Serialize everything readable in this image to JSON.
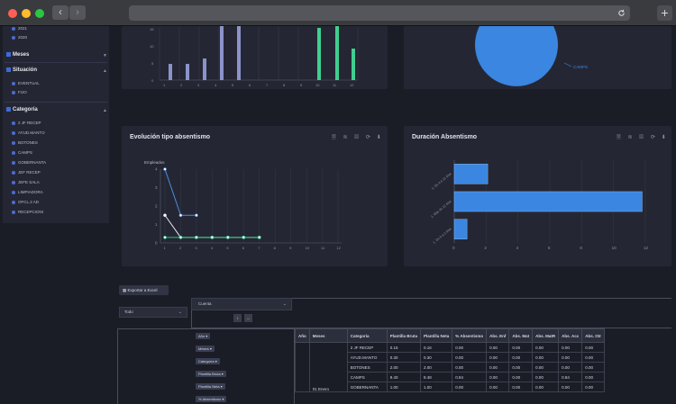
{
  "window": {
    "traffic_lights": [
      "#fe5f57",
      "#febc2e",
      "#28c840"
    ],
    "back_icon": "‹",
    "forward_icon": "›",
    "new_tab_icon": "+"
  },
  "sidebar": {
    "year_items": [
      "2021",
      "2020"
    ],
    "sections": [
      {
        "title": "Meses",
        "arrow": "▼"
      },
      {
        "title": "Situación",
        "arrow": "▲",
        "items": [
          "EVENTUAL",
          "FIJO"
        ]
      },
      {
        "title": "Categoría",
        "arrow": "▲",
        "items": [
          "2 JF RECEP",
          "AYUD.MANTO",
          "BOTONES",
          "CAMPS",
          "GOBERNANTA",
          "JEF RECEP",
          "JEFE SALA",
          "LIMPIADORA",
          "OFCL.2 AD",
          "RECEPCIONI"
        ]
      }
    ]
  },
  "top_left_chart": {
    "type": "bar",
    "y_ticks": [
      "0",
      "5",
      "10",
      "15"
    ],
    "x_ticks": [
      "1",
      "2",
      "3",
      "4",
      "5",
      "6",
      "7",
      "8",
      "9",
      "10",
      "11",
      "12"
    ]
  },
  "top_right_chart": {
    "type": "pie",
    "label": "CAMPS"
  },
  "evolucion": {
    "title": "Evolución tipo absentismo",
    "legend": "Empleados",
    "tools": "🗎 ≋ ▥ ⟳ ⬇",
    "chart_data": {
      "type": "line",
      "x": [
        1,
        2,
        3,
        4,
        5,
        6,
        7,
        8,
        9,
        10,
        11,
        12
      ],
      "ylim": [
        0,
        4
      ],
      "y_ticks": [
        "0",
        "1",
        "2",
        "3",
        "4"
      ],
      "series": [
        {
          "color": "#4d8de0",
          "points": [
            [
              1,
              4
            ],
            [
              2,
              1.5
            ],
            [
              3,
              1.5
            ]
          ]
        },
        {
          "color": "#e8e8f0",
          "points": [
            [
              1,
              1.5
            ],
            [
              2,
              0.3
            ],
            [
              3,
              0.3
            ],
            [
              4,
              0.3
            ],
            [
              5,
              0.3
            ],
            [
              6,
              0.3
            ],
            [
              7,
              0.3
            ]
          ]
        },
        {
          "color": "#2fbf8a",
          "points": [
            [
              1,
              0.3
            ],
            [
              2,
              0.3
            ],
            [
              3,
              0.3
            ],
            [
              4,
              0.3
            ],
            [
              5,
              0.3
            ],
            [
              6,
              0.3
            ],
            [
              7,
              0.3
            ]
          ]
        }
      ]
    }
  },
  "duracion": {
    "title": "Duración Absentismo",
    "tools": "🗎 ≋ ▥ ⟳ ⬇",
    "chart_data": {
      "type": "bar",
      "orientation": "horizontal",
      "categories": [
        "3. De 4 a 12 días",
        "2. Más de 12 días",
        "1. De 0 a 3 días"
      ],
      "values": [
        2.1,
        11.8,
        0.8
      ],
      "xlim": [
        0,
        12
      ],
      "x_ticks": [
        "0",
        "2",
        "4",
        "6",
        "8",
        "10",
        "12"
      ],
      "color": "#3a86e0"
    }
  },
  "toolbar": {
    "export_label": "Exportar a Excel",
    "export_icon": "▦",
    "filter_value": "Todo",
    "aggregator_value": "Cuenta",
    "sort_label": "↕",
    "order_label": "↔"
  },
  "pivot": {
    "fields": [
      "Año",
      "Meses",
      "Categoría",
      "Plantilla Bruta",
      "Plantilla Neta",
      "% Absentismo"
    ],
    "headers": [
      "Año",
      "Meses",
      "Categoría",
      "Plantilla Bruta",
      "Plantilla Neta",
      "% Absentismo",
      "Abs. Enf",
      "Abs. Mat",
      "Abs. MatR",
      "Abs. Acc",
      "Abs. Otr"
    ],
    "month_label": "01 Enero",
    "rows": [
      [
        "2 JF RECEP",
        "0.16",
        "0.16",
        "0.00",
        "0.00",
        "0.00",
        "0.00",
        "0.00",
        "0.00"
      ],
      [
        "AYUD.MANTO",
        "0.30",
        "0.30",
        "0.00",
        "0.00",
        "0.00",
        "0.00",
        "0.00",
        "0.00"
      ],
      [
        "BOTONES",
        "2.00",
        "2.00",
        "0.00",
        "0.00",
        "0.00",
        "0.00",
        "0.00",
        "0.00"
      ],
      [
        "CAMPS",
        "9.40",
        "8.48",
        "0.84",
        "0.00",
        "0.00",
        "0.00",
        "0.84",
        "0.00"
      ],
      [
        "GOBERNANTA",
        "1.00",
        "1.00",
        "0.00",
        "0.00",
        "0.00",
        "0.00",
        "0.00",
        "0.00"
      ]
    ]
  }
}
